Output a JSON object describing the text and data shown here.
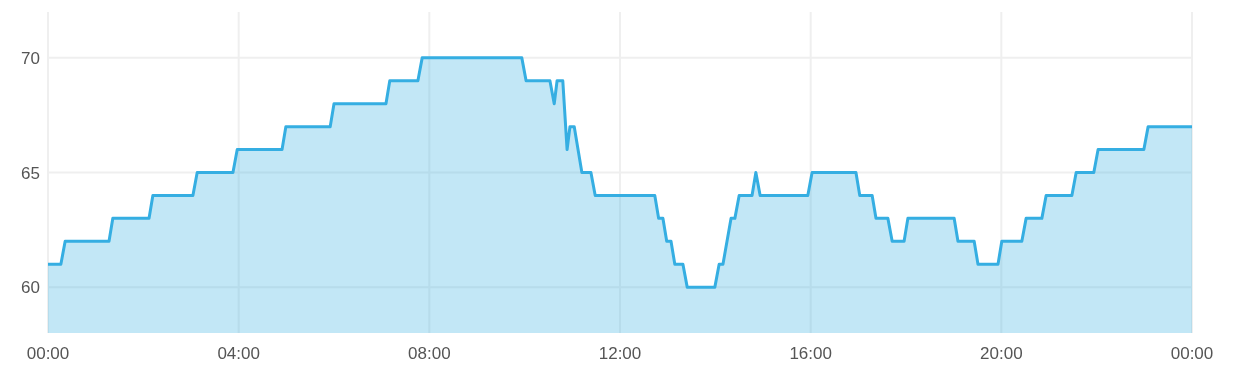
{
  "chart_data": {
    "type": "area",
    "x": [
      0,
      0.27,
      0.36,
      1.28,
      1.36,
      2.12,
      2.2,
      3.04,
      3.13,
      3.88,
      3.97,
      4.91,
      4.99,
      5.92,
      6.0,
      7.09,
      7.17,
      7.76,
      7.85,
      9.94,
      10.03,
      10.53,
      10.62,
      10.68,
      10.8,
      10.89,
      10.95,
      11.04,
      11.2,
      11.39,
      11.48,
      12.73,
      12.81,
      12.9,
      12.98,
      13.07,
      13.15,
      13.32,
      13.41,
      13.99,
      14.08,
      14.16,
      14.33,
      14.41,
      14.5,
      14.77,
      14.85,
      14.94,
      15.94,
      16.03,
      16.95,
      17.03,
      17.29,
      17.37,
      17.62,
      17.71,
      17.96,
      18.04,
      19.01,
      19.09,
      19.43,
      19.51,
      19.93,
      20.01,
      20.43,
      20.52,
      20.85,
      20.94,
      21.48,
      21.57,
      21.94,
      22.03,
      22.99,
      23.08,
      24
    ],
    "series": [
      {
        "color": "#35aee2",
        "values": [
          61,
          61,
          62,
          62,
          63,
          63,
          64,
          64,
          65,
          65,
          66,
          66,
          67,
          67,
          68,
          68,
          69,
          69,
          70,
          70,
          69,
          69,
          68,
          69,
          69,
          66,
          67,
          67,
          65,
          65,
          64,
          64,
          63,
          63,
          62,
          62,
          61,
          61,
          60,
          60,
          61,
          61,
          63,
          63,
          64,
          64,
          65,
          64,
          64,
          65,
          65,
          64,
          64,
          63,
          63,
          62,
          62,
          63,
          63,
          62,
          62,
          61,
          61,
          62,
          62,
          63,
          63,
          64,
          64,
          65,
          65,
          66,
          66,
          67,
          67
        ]
      }
    ],
    "xlim": [
      0,
      24
    ],
    "xticks": [
      {
        "value": 0,
        "label": "00:00"
      },
      {
        "value": 4,
        "label": "04:00"
      },
      {
        "value": 8,
        "label": "08:00"
      },
      {
        "value": 12,
        "label": "12:00"
      },
      {
        "value": 16,
        "label": "16:00"
      },
      {
        "value": 20,
        "label": "20:00"
      },
      {
        "value": 24,
        "label": "00:00"
      }
    ],
    "ylim": [
      58,
      72
    ],
    "yticks": [
      60,
      65,
      70
    ],
    "grid": true
  }
}
